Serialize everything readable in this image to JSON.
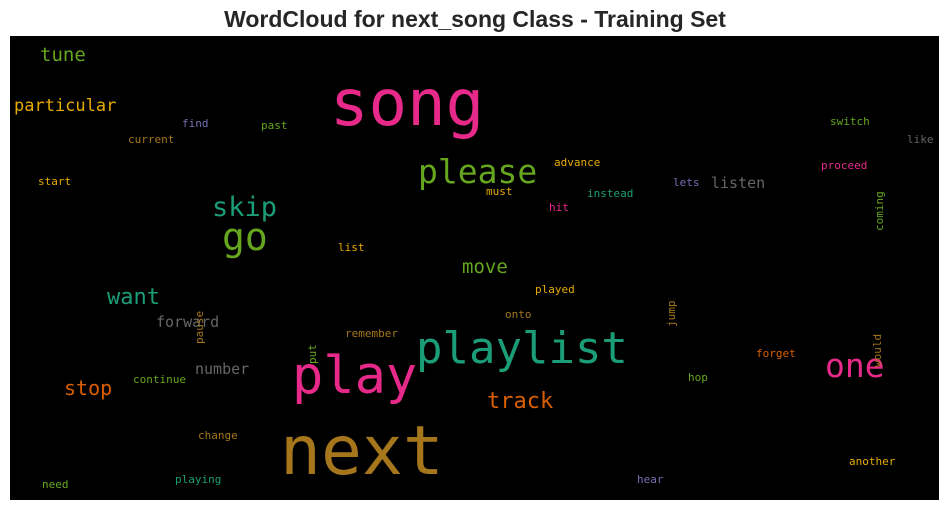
{
  "title": "WordCloud for next_song Class - Training Set",
  "colors": {
    "pink": "#e7298a",
    "green": "#66a61e",
    "teal": "#1b9e77",
    "orange": "#d95f02",
    "gold": "#e6ab02",
    "brown": "#a6761d",
    "purple": "#7570b3",
    "gray": "#666666"
  },
  "words": [
    {
      "text": "song",
      "color": "pink"
    },
    {
      "text": "next",
      "color": "brown"
    },
    {
      "text": "playlist",
      "color": "teal"
    },
    {
      "text": "play",
      "color": "pink"
    },
    {
      "text": "one",
      "color": "pink"
    },
    {
      "text": "please",
      "color": "green"
    },
    {
      "text": "go",
      "color": "green"
    },
    {
      "text": "skip",
      "color": "teal"
    },
    {
      "text": "track",
      "color": "orange"
    },
    {
      "text": "want",
      "color": "teal"
    },
    {
      "text": "move",
      "color": "green"
    },
    {
      "text": "stop",
      "color": "orange"
    },
    {
      "text": "tune",
      "color": "green"
    },
    {
      "text": "particular",
      "color": "gold"
    },
    {
      "text": "forward",
      "color": "gray"
    },
    {
      "text": "number",
      "color": "gray"
    },
    {
      "text": "listen",
      "color": "gray"
    },
    {
      "text": "find",
      "color": "purple"
    },
    {
      "text": "past",
      "color": "green"
    },
    {
      "text": "current",
      "color": "brown"
    },
    {
      "text": "start",
      "color": "gold"
    },
    {
      "text": "advance",
      "color": "gold"
    },
    {
      "text": "must",
      "color": "gold"
    },
    {
      "text": "instead",
      "color": "teal"
    },
    {
      "text": "hit",
      "color": "pink"
    },
    {
      "text": "lets",
      "color": "purple"
    },
    {
      "text": "switch",
      "color": "green"
    },
    {
      "text": "like",
      "color": "gray"
    },
    {
      "text": "proceed",
      "color": "pink"
    },
    {
      "text": "coming",
      "color": "green"
    },
    {
      "text": "list",
      "color": "gold"
    },
    {
      "text": "pause",
      "color": "brown"
    },
    {
      "text": "played",
      "color": "gold"
    },
    {
      "text": "jump",
      "color": "brown"
    },
    {
      "text": "would",
      "color": "brown"
    },
    {
      "text": "put",
      "color": "green"
    },
    {
      "text": "remember",
      "color": "brown"
    },
    {
      "text": "onto",
      "color": "brown"
    },
    {
      "text": "continue",
      "color": "green"
    },
    {
      "text": "forget",
      "color": "orange"
    },
    {
      "text": "hop",
      "color": "green"
    },
    {
      "text": "change",
      "color": "brown"
    },
    {
      "text": "another",
      "color": "gold"
    },
    {
      "text": "need",
      "color": "green"
    },
    {
      "text": "playing",
      "color": "teal"
    },
    {
      "text": "hear",
      "color": "purple"
    }
  ]
}
